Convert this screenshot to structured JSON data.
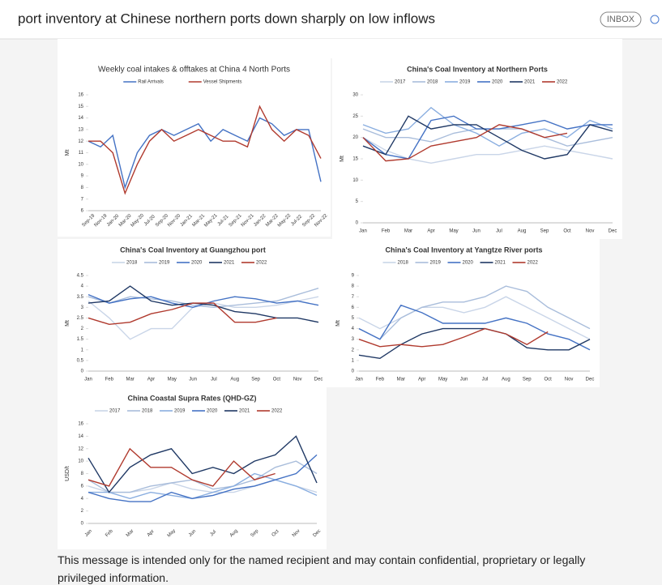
{
  "header": {
    "subject": "port inventory at Chinese northern ports down sharply on low inflows",
    "badge": "INBOX"
  },
  "footer": {
    "text": "This message is intended only for the named recipient and may contain confidential, proprietary or legally privileged information."
  },
  "chart_data": [
    {
      "type": "line",
      "title": "Weekly coal intakes & offtakes at China 4 North Ports",
      "y_label": "Mt",
      "categories": [
        "Sep-19",
        "Nov-19",
        "Jan-20",
        "Mar-20",
        "May-20",
        "Jul-20",
        "Sep-20",
        "Nov-20",
        "Jan-21",
        "Mar-21",
        "May-21",
        "Jul-21",
        "Sep-21",
        "Nov-21",
        "Jan-22",
        "Mar-22",
        "May-22",
        "Jul-22",
        "Sep-22",
        "Nov-22"
      ],
      "series": [
        {
          "name": "Rail Arrivals",
          "color": "#4472c4",
          "values": [
            12,
            11.5,
            12.5,
            8,
            11,
            12.5,
            13,
            12.5,
            13,
            13.5,
            12,
            13,
            12.5,
            12,
            14,
            13.5,
            12.5,
            13,
            13,
            8.5
          ]
        },
        {
          "name": "Vessel Shipments",
          "color": "#b03a2e",
          "values": [
            12,
            12,
            11,
            7.5,
            10,
            12,
            13,
            12,
            12.5,
            13,
            12.5,
            12,
            12,
            11.5,
            15,
            13,
            12,
            13,
            12.5,
            10.5
          ]
        }
      ],
      "ylim": [
        6,
        16
      ],
      "yticks": [
        6,
        7,
        8,
        9,
        10,
        11,
        12,
        13,
        14,
        15,
        16
      ],
      "grid": false
    },
    {
      "type": "line",
      "title": "China's Coal Inventory at Northern Ports",
      "y_label": "Mt",
      "categories": [
        "Jan",
        "Feb",
        "Mar",
        "Apr",
        "May",
        "Jun",
        "Jul",
        "Aug",
        "Sep",
        "Oct",
        "Nov",
        "Dec"
      ],
      "series": [
        {
          "name": "2017",
          "color": "#c9d5e8",
          "values": [
            20,
            17,
            15,
            14,
            15,
            16,
            16,
            17,
            18,
            17,
            16,
            15
          ]
        },
        {
          "name": "2018",
          "color": "#a9bddb",
          "values": [
            22,
            20,
            20,
            19,
            21,
            22,
            22,
            22,
            20,
            18,
            19,
            20
          ]
        },
        {
          "name": "2019",
          "color": "#8aaee0",
          "values": [
            23,
            21,
            22,
            27,
            23,
            21,
            18,
            21,
            22,
            20,
            24,
            22
          ]
        },
        {
          "name": "2020",
          "color": "#4472c4",
          "values": [
            20,
            16,
            15,
            24,
            25,
            22,
            22,
            23,
            24,
            22,
            23,
            23
          ]
        },
        {
          "name": "2021",
          "color": "#1f3864",
          "values": [
            18,
            16,
            25,
            22,
            23,
            23,
            20,
            17,
            15,
            16,
            23,
            21.5
          ]
        },
        {
          "name": "2022",
          "color": "#b03a2e",
          "values": [
            20,
            14.5,
            15,
            18,
            19,
            20,
            23,
            22,
            20,
            21,
            null,
            null
          ]
        }
      ],
      "ylim": [
        0,
        30
      ],
      "yticks": [
        0,
        5,
        10,
        15,
        20,
        25,
        30
      ],
      "grid": false
    },
    {
      "type": "line",
      "title": "China's Coal Inventory at Guangzhou port",
      "y_label": "Mt",
      "categories": [
        "Jan",
        "Feb",
        "Mar",
        "Apr",
        "May",
        "Jun",
        "Jul",
        "Aug",
        "Sep",
        "Oct",
        "Nov",
        "Dec"
      ],
      "series": [
        {
          "name": "2018",
          "color": "#c9d5e8",
          "values": [
            3.3,
            2.5,
            1.5,
            2,
            2,
            3,
            3.2,
            3,
            3,
            3.1,
            3.3,
            3.5
          ]
        },
        {
          "name": "2019",
          "color": "#a9bddb",
          "values": [
            3.5,
            3.2,
            3.5,
            3.4,
            3.3,
            3.1,
            3,
            3.1,
            3.2,
            3.3,
            3.6,
            3.9
          ]
        },
        {
          "name": "2020",
          "color": "#4472c4",
          "values": [
            3.6,
            3.2,
            3.4,
            3.5,
            3.2,
            3,
            3.3,
            3.5,
            3.4,
            3.2,
            3.3,
            3.1
          ]
        },
        {
          "name": "2021",
          "color": "#1f3864",
          "values": [
            3.2,
            3.3,
            4,
            3.3,
            3.1,
            3.2,
            3.1,
            2.8,
            2.7,
            2.5,
            2.5,
            2.3
          ]
        },
        {
          "name": "2022",
          "color": "#b03a2e",
          "values": [
            2.5,
            2.2,
            2.3,
            2.7,
            2.9,
            3.2,
            3.2,
            2.3,
            2.3,
            2.5,
            null,
            null
          ]
        }
      ],
      "ylim": [
        0,
        4.5
      ],
      "yticks": [
        0,
        0.5,
        1,
        1.5,
        2,
        2.5,
        3,
        3.5,
        4,
        4.5
      ],
      "grid": false
    },
    {
      "type": "line",
      "title": "China's Coal Inventory at Yangtze River ports",
      "y_label": "Mt",
      "categories": [
        "Jan",
        "Feb",
        "Mar",
        "Apr",
        "May",
        "Jun",
        "Jul",
        "Aug",
        "Sep",
        "Oct",
        "Nov",
        "Dec"
      ],
      "series": [
        {
          "name": "2018",
          "color": "#c9d5e8",
          "values": [
            5,
            4,
            5,
            6,
            6,
            5.5,
            6,
            7,
            6,
            5,
            4,
            3
          ]
        },
        {
          "name": "2019",
          "color": "#a9bddb",
          "values": [
            4,
            3,
            5,
            6,
            6.5,
            6.5,
            7,
            8,
            7.5,
            6,
            5,
            4
          ]
        },
        {
          "name": "2020",
          "color": "#4472c4",
          "values": [
            4,
            3,
            6.2,
            5.5,
            4.5,
            4.5,
            4.5,
            5,
            4.5,
            3.5,
            3,
            2
          ]
        },
        {
          "name": "2021",
          "color": "#1f3864",
          "values": [
            1.5,
            1.2,
            2.5,
            3.5,
            4,
            4,
            4,
            3.5,
            2.2,
            2,
            2,
            3
          ]
        },
        {
          "name": "2022",
          "color": "#b03a2e",
          "values": [
            3,
            2.3,
            2.5,
            2.3,
            2.5,
            3.2,
            4,
            3.5,
            2.5,
            3.7,
            null,
            null
          ]
        }
      ],
      "ylim": [
        0,
        9
      ],
      "yticks": [
        0,
        1,
        2,
        3,
        4,
        5,
        6,
        7,
        8,
        9
      ],
      "grid": false
    },
    {
      "type": "line",
      "title": "China Coastal Supra Rates (QHD-GZ)",
      "y_label": "USD/t",
      "categories": [
        "Jan",
        "Feb",
        "Mar",
        "Apr",
        "May",
        "Jun",
        "Jul",
        "Aug",
        "Sep",
        "Oct",
        "Nov",
        "Dec"
      ],
      "series": [
        {
          "name": "2017",
          "color": "#c9d5e8",
          "values": [
            6,
            5,
            5,
            5.5,
            6.5,
            5.5,
            5,
            5,
            6,
            7,
            6,
            5
          ]
        },
        {
          "name": "2018",
          "color": "#a9bddb",
          "values": [
            7,
            5,
            5,
            6,
            6.5,
            7,
            5.5,
            6,
            7,
            9,
            10,
            8
          ]
        },
        {
          "name": "2019",
          "color": "#8aaee0",
          "values": [
            5,
            5,
            4,
            5,
            4.5,
            4,
            5,
            6,
            8,
            7,
            6,
            4.5
          ]
        },
        {
          "name": "2020",
          "color": "#4472c4",
          "values": [
            5,
            4,
            3.5,
            3.5,
            5,
            4,
            4.5,
            5.5,
            6,
            7,
            8,
            11
          ]
        },
        {
          "name": "2021",
          "color": "#1f3864",
          "values": [
            10.5,
            5,
            9,
            11,
            12,
            8,
            9,
            8,
            10,
            11,
            14,
            6.5
          ]
        },
        {
          "name": "2022",
          "color": "#b03a2e",
          "values": [
            7,
            6,
            12,
            9,
            9,
            7,
            6,
            10,
            7,
            8,
            null,
            null
          ]
        }
      ],
      "ylim": [
        0,
        16
      ],
      "yticks": [
        0,
        2,
        4,
        6,
        8,
        10,
        12,
        14,
        16
      ],
      "grid": false
    }
  ]
}
